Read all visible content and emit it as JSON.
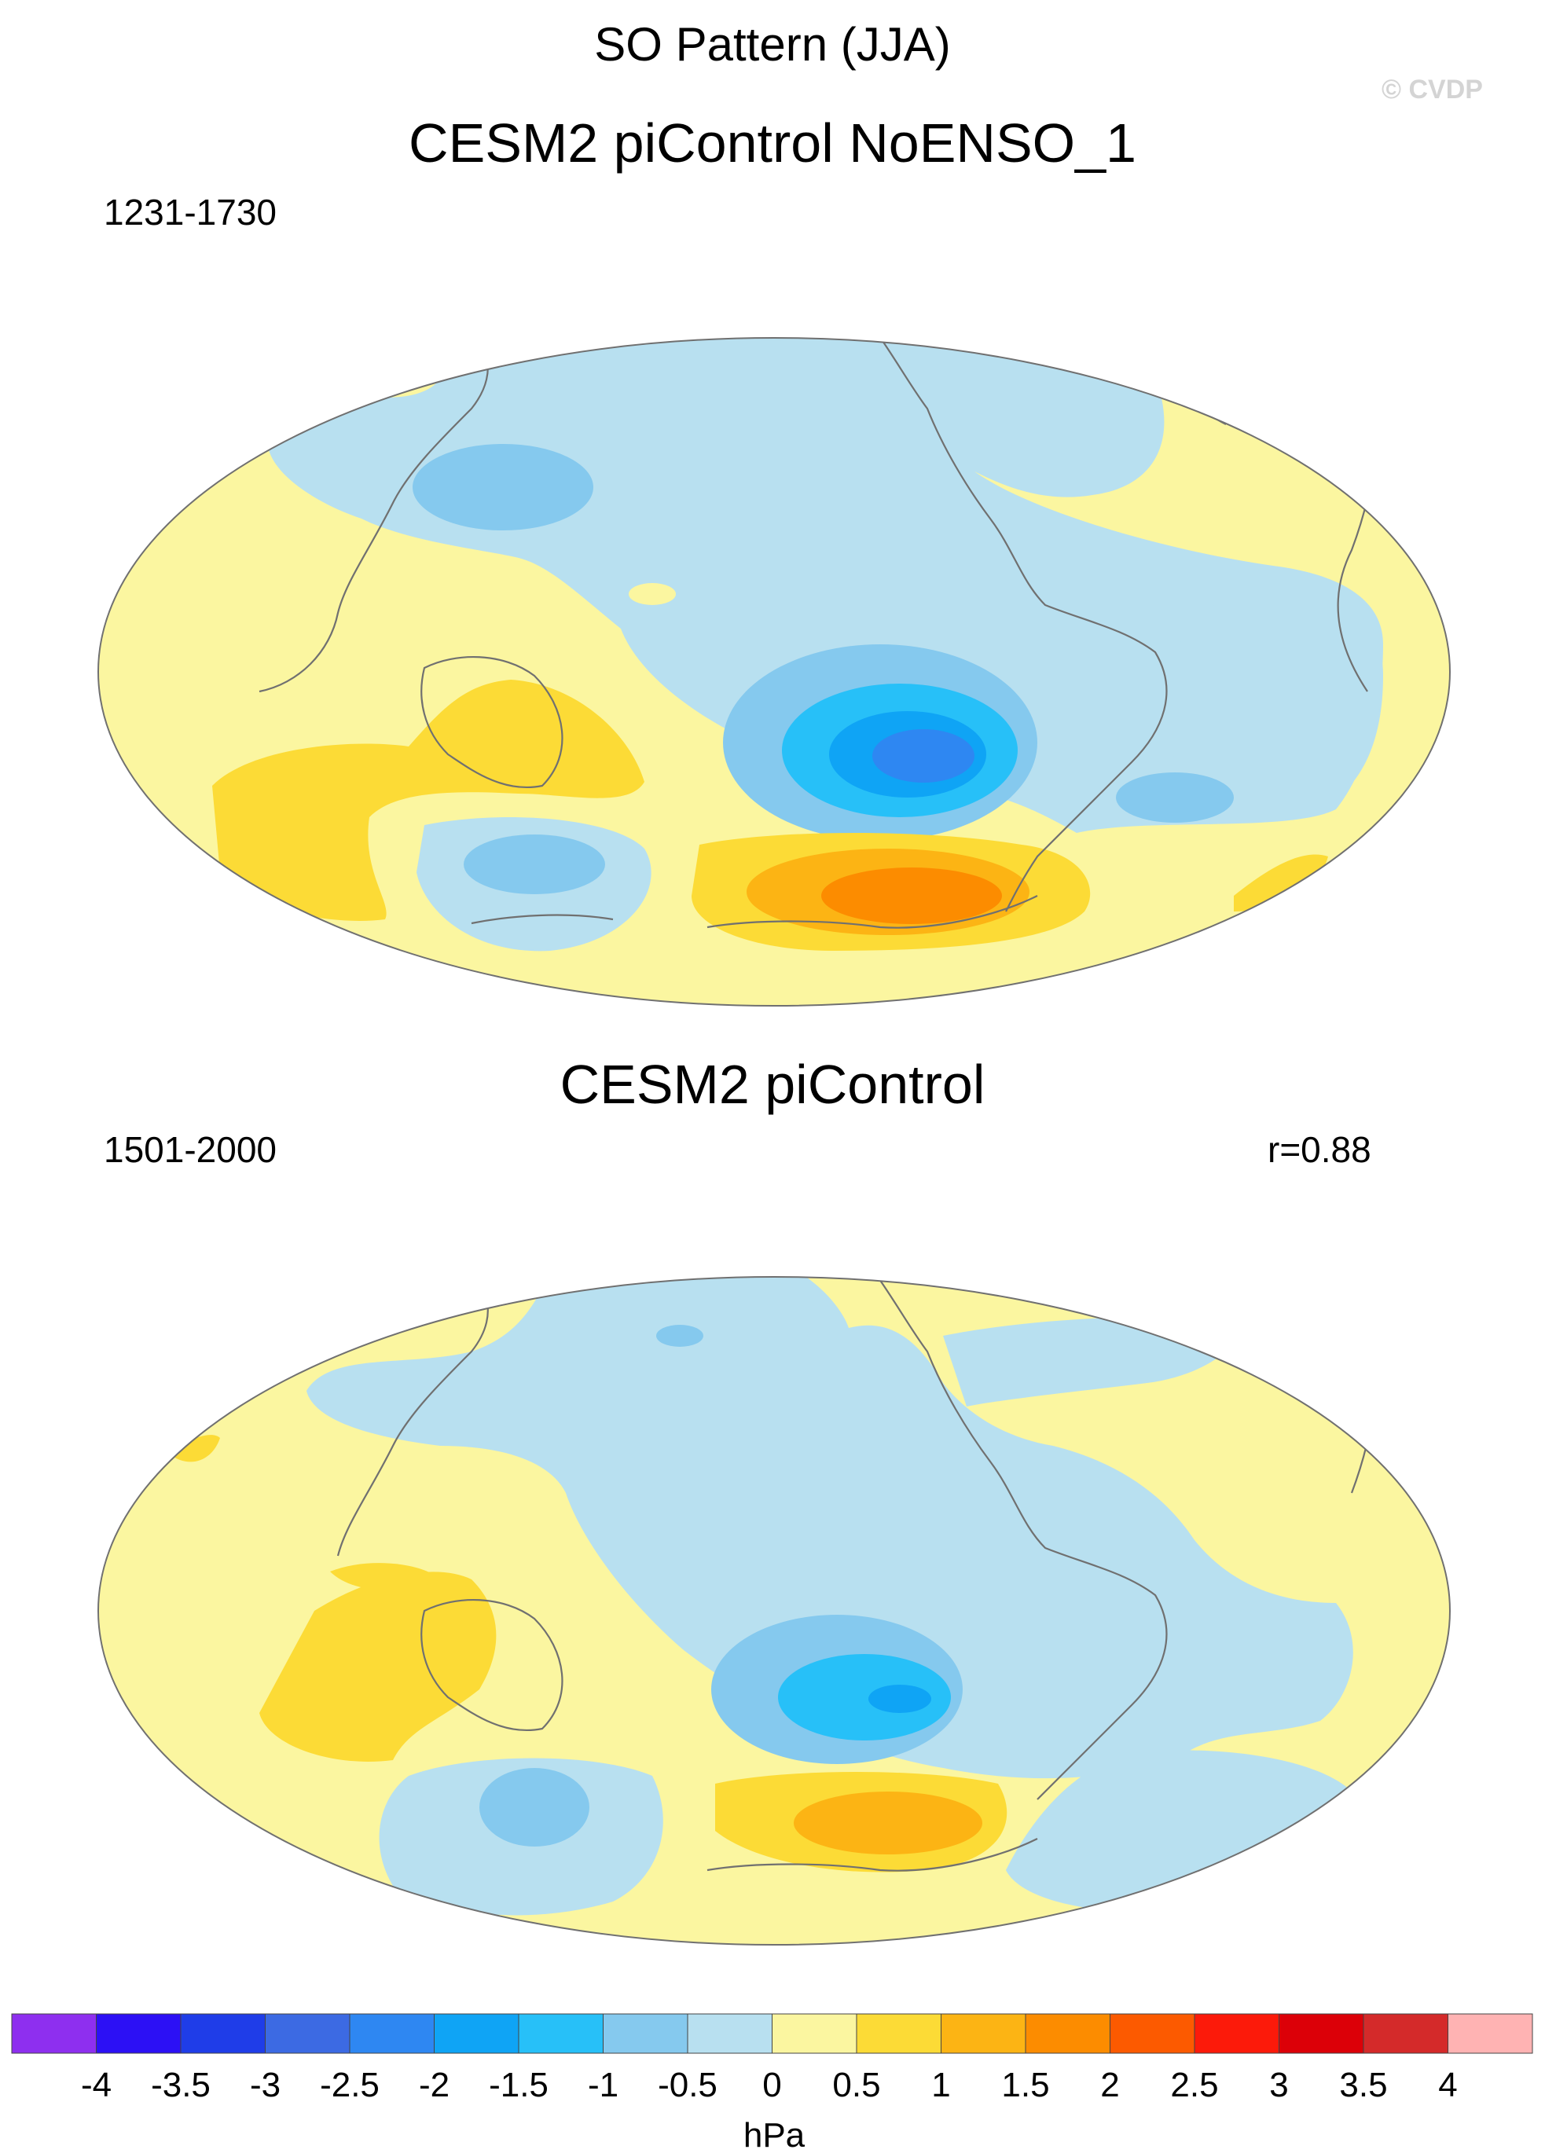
{
  "figure": {
    "title": "SO Pattern (JJA)",
    "watermark": "© CVDP"
  },
  "panels": [
    {
      "title": "CESM2 piControl NoENSO_1",
      "period": "1231-1730",
      "correlation": ""
    },
    {
      "title": "CESM2 piControl",
      "period": "1501-2000",
      "correlation": "r=0.88"
    }
  ],
  "colorbar": {
    "unit": "hPa",
    "labels": [
      "-4",
      "-3.5",
      "-3",
      "-2.5",
      "-2",
      "-1.5",
      "-1",
      "-0.5",
      "0",
      "0.5",
      "1",
      "1.5",
      "2",
      "2.5",
      "3",
      "3.5",
      "4"
    ],
    "colors": [
      "#8e2fef",
      "#2c10f5",
      "#1f3de8",
      "#3c6ae3",
      "#2e87f2",
      "#0fa4f5",
      "#27c0f8",
      "#85c9ee",
      "#b8e0f0",
      "#fbf6a0",
      "#fcdb36",
      "#fcb414",
      "#fc8c00",
      "#fc5a00",
      "#fc1a0a",
      "#dc0008",
      "#d42a2a",
      "#ffb3b3"
    ]
  },
  "colors": {
    "land_ocean_default": "#fbf6a0",
    "negative_weak": "#b8e0f0",
    "coastline": "#707070"
  }
}
